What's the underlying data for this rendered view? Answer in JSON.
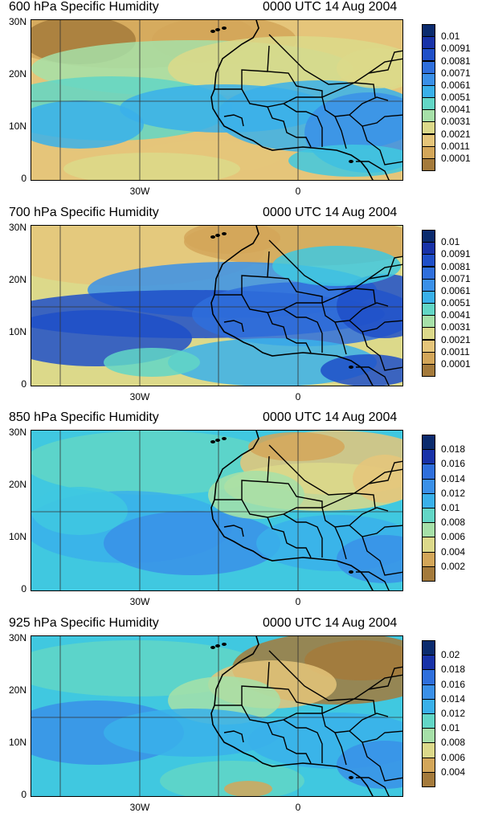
{
  "panels": [
    {
      "title": "600 hPa Specific Humidity",
      "time": "0000 UTC 14 Aug 2004",
      "y_ticks": [
        "30N",
        "20N",
        "10N",
        "0"
      ],
      "x_ticks": [
        "30W",
        "0"
      ],
      "legend": [
        "0.01",
        "0.0091",
        "0.0081",
        "0.0071",
        "0.0061",
        "0.0051",
        "0.0041",
        "0.0031",
        "0.0021",
        "0.0011",
        "0.0001"
      ],
      "legend_colors": [
        "#0b2b6e",
        "#1832a8",
        "#1f4fc8",
        "#2f6fdc",
        "#3a90e8",
        "#39b0ea",
        "#40c8e0",
        "#62d6c6",
        "#a6e0a8",
        "#dcd98a",
        "#e5c57a",
        "#d3a659",
        "#a47a3b"
      ]
    },
    {
      "title": "700 hPa Specific Humidity",
      "time": "0000 UTC 14 Aug 2004",
      "y_ticks": [
        "30N",
        "20N",
        "10N",
        "0"
      ],
      "x_ticks": [
        "30W",
        "0"
      ],
      "legend": [
        "0.01",
        "0.0091",
        "0.0081",
        "0.0071",
        "0.0061",
        "0.0051",
        "0.0041",
        "0.0031",
        "0.0021",
        "0.0011",
        "0.0001"
      ],
      "legend_colors": [
        "#0b2b6e",
        "#1832a8",
        "#1f4fc8",
        "#2f6fdc",
        "#3a90e8",
        "#39b0ea",
        "#40c8e0",
        "#62d6c6",
        "#a6e0a8",
        "#dcd98a",
        "#e5c57a",
        "#d3a659",
        "#a47a3b"
      ]
    },
    {
      "title": "850 hPa Specific Humidity",
      "time": "0000 UTC 14 Aug 2004",
      "y_ticks": [
        "30N",
        "20N",
        "10N",
        "0"
      ],
      "x_ticks": [
        "30W",
        "0"
      ],
      "legend": [
        "0.018",
        "0.016",
        "0.014",
        "0.012",
        "0.01",
        "0.008",
        "0.006",
        "0.004",
        "0.002"
      ],
      "legend_colors": [
        "#0b2b6e",
        "#1832a8",
        "#1f4fc8",
        "#2f6fdc",
        "#3a90e8",
        "#39b0ea",
        "#40c8e0",
        "#62d6c6",
        "#a6e0a8",
        "#dcd98a",
        "#e5c57a",
        "#d3a659",
        "#a47a3b"
      ]
    },
    {
      "title": "925 hPa Specific Humidity",
      "time": "0000 UTC 14 Aug 2004",
      "y_ticks": [
        "30N",
        "20N",
        "10N",
        "0"
      ],
      "x_ticks": [
        "30W",
        "0"
      ],
      "legend": [
        "0.02",
        "0.018",
        "0.016",
        "0.014",
        "0.012",
        "0.01",
        "0.008",
        "0.006",
        "0.004"
      ],
      "legend_colors": [
        "#0b2b6e",
        "#1832a8",
        "#1f4fc8",
        "#2f6fdc",
        "#3a90e8",
        "#39b0ea",
        "#40c8e0",
        "#62d6c6",
        "#a6e0a8",
        "#dcd98a",
        "#e5c57a",
        "#d3a659",
        "#a47a3b"
      ]
    }
  ]
}
